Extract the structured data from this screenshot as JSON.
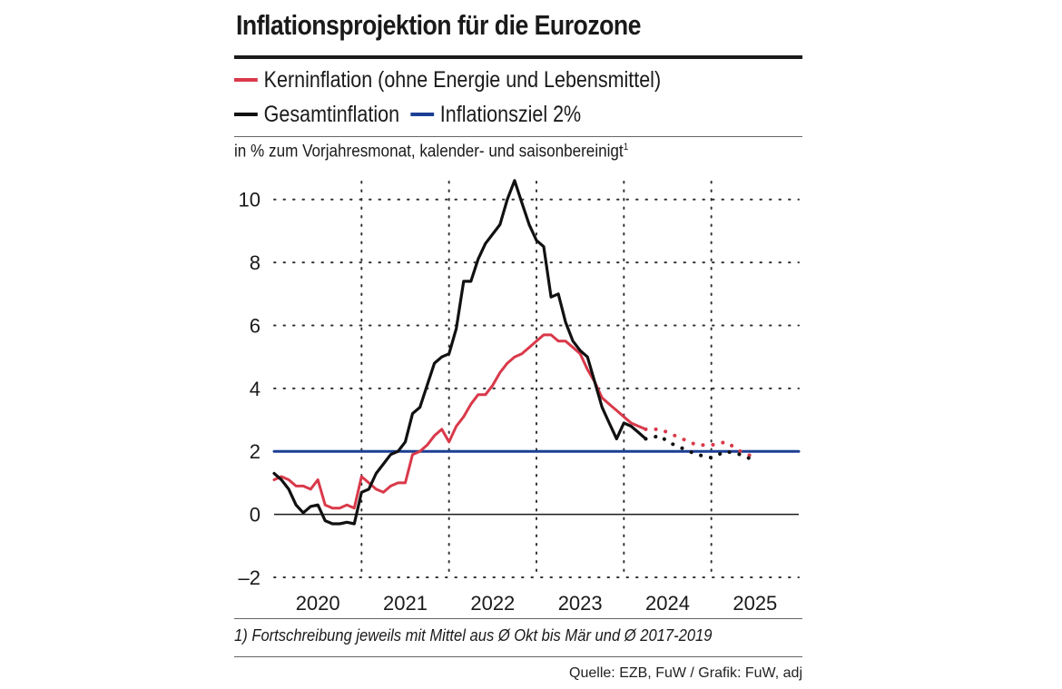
{
  "chart_data": {
    "type": "line",
    "title": "Inflationsprojektion für die Eurozone",
    "ylabel": "in % zum Vorjahresmonat,  kalender- und saisonbereinigt",
    "ylabel_footnote_mark": "1",
    "ylim": [
      -2,
      11
    ],
    "yticks": [
      10,
      8,
      6,
      4,
      2,
      0,
      -2
    ],
    "ytick_labels": [
      "10",
      "8",
      "6",
      "4",
      "2",
      "0",
      "–2"
    ],
    "xlim": [
      2019.5,
      2025.5
    ],
    "x_tick_labels": [
      "2020",
      "2021",
      "2022",
      "2023",
      "2024",
      "2025"
    ],
    "x_tick_positions": [
      2020,
      2021,
      2022,
      2023,
      2024,
      2025
    ],
    "x_grid": [
      2020.5,
      2021.5,
      2022.5,
      2023.5,
      2024.5
    ],
    "legend": {
      "core": "Kerninflation (ohne Energie und Lebensmittel)",
      "headline": "Gesamtinflation",
      "target": "Inflationsziel 2%"
    },
    "colors": {
      "core": "#d9394a",
      "headline": "#111111",
      "target": "#1c3f94",
      "grid": "#333333"
    },
    "series": [
      {
        "name": "Gesamtinflation",
        "x": [
          2019.5,
          2019.583,
          2019.667,
          2019.75,
          2019.833,
          2019.917,
          2020.0,
          2020.083,
          2020.167,
          2020.25,
          2020.333,
          2020.417,
          2020.5,
          2020.583,
          2020.667,
          2020.75,
          2020.833,
          2020.917,
          2021.0,
          2021.083,
          2021.167,
          2021.25,
          2021.333,
          2021.417,
          2021.5,
          2021.583,
          2021.667,
          2021.75,
          2021.833,
          2021.917,
          2022.0,
          2022.083,
          2022.167,
          2022.25,
          2022.333,
          2022.417,
          2022.5,
          2022.583,
          2022.667,
          2022.75,
          2022.833,
          2022.917,
          2023.0,
          2023.083,
          2023.167,
          2023.25,
          2023.333,
          2023.417,
          2023.5,
          2023.583,
          2023.667,
          2023.75
        ],
        "values": [
          1.3,
          1.1,
          0.8,
          0.3,
          0.05,
          0.25,
          0.3,
          -0.2,
          -0.3,
          -0.3,
          -0.25,
          -0.3,
          0.7,
          0.8,
          1.3,
          1.6,
          1.9,
          2.0,
          2.3,
          3.2,
          3.4,
          4.1,
          4.8,
          5.0,
          5.1,
          5.9,
          7.4,
          7.4,
          8.1,
          8.6,
          8.9,
          9.2,
          10.0,
          10.6,
          9.9,
          9.2,
          8.7,
          8.5,
          6.9,
          7.0,
          6.1,
          5.5,
          5.2,
          5.0,
          4.2,
          3.4,
          2.9,
          2.4,
          2.9,
          2.8,
          2.6,
          2.4
        ],
        "projection_x": [
          2023.917,
          2024.0,
          2024.167,
          2024.333,
          2024.5,
          2024.667,
          2024.833,
          2025.0
        ],
        "projection_values": [
          2.5,
          2.3,
          2.1,
          1.9,
          1.8,
          2.0,
          1.9,
          1.7
        ]
      },
      {
        "name": "Kerninflation (ohne Energie und Lebensmittel)",
        "x": [
          2019.5,
          2019.583,
          2019.667,
          2019.75,
          2019.833,
          2019.917,
          2020.0,
          2020.083,
          2020.167,
          2020.25,
          2020.333,
          2020.417,
          2020.5,
          2020.583,
          2020.667,
          2020.75,
          2020.833,
          2020.917,
          2021.0,
          2021.083,
          2021.167,
          2021.25,
          2021.333,
          2021.417,
          2021.5,
          2021.583,
          2021.667,
          2021.75,
          2021.833,
          2021.917,
          2022.0,
          2022.083,
          2022.167,
          2022.25,
          2022.333,
          2022.417,
          2022.5,
          2022.583,
          2022.667,
          2022.75,
          2022.833,
          2022.917,
          2023.0,
          2023.083,
          2023.167,
          2023.25,
          2023.333,
          2023.417,
          2023.5,
          2023.583,
          2023.667,
          2023.75
        ],
        "values": [
          1.1,
          1.2,
          1.1,
          0.9,
          0.9,
          0.8,
          1.1,
          0.3,
          0.2,
          0.2,
          0.3,
          0.2,
          1.2,
          1.0,
          0.8,
          0.7,
          0.9,
          1.0,
          1.0,
          1.9,
          2.0,
          2.2,
          2.5,
          2.7,
          2.3,
          2.8,
          3.1,
          3.5,
          3.8,
          3.8,
          4.1,
          4.5,
          4.8,
          5.0,
          5.1,
          5.3,
          5.5,
          5.7,
          5.7,
          5.5,
          5.5,
          5.3,
          5.1,
          4.6,
          4.2,
          3.7,
          3.5,
          3.3,
          3.1,
          2.9,
          2.8,
          2.7
        ],
        "projection_x": [
          2023.917,
          2024.0,
          2024.167,
          2024.333,
          2024.5,
          2024.667,
          2024.833,
          2025.0
        ],
        "projection_values": [
          2.7,
          2.6,
          2.4,
          2.2,
          2.2,
          2.3,
          2.0,
          1.8
        ]
      },
      {
        "name": "Inflationsziel 2%",
        "x": [
          2019.5,
          2024.667
        ],
        "values": [
          2,
          2
        ],
        "projection_x": [
          2024.667,
          2025.5
        ],
        "projection_values": [
          2,
          2
        ]
      }
    ]
  },
  "footnote": "1) Fortschreibung jeweils mit Mittel aus Ø Okt bis Mär und Ø 2017-2019",
  "source": "Quelle: EZB, FuW / Grafik: FuW, adj"
}
